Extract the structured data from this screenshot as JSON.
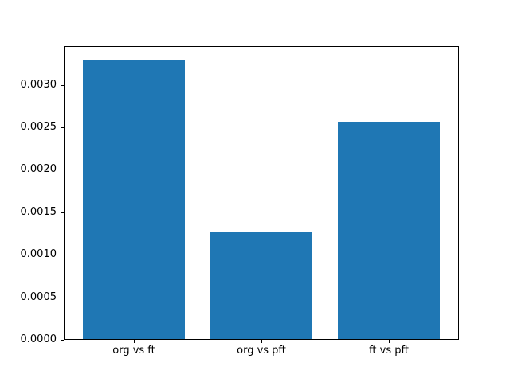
{
  "figure": {
    "background_color": "#ffffff",
    "frame_color": "#000000",
    "text_color": "#000000"
  },
  "chart_data": {
    "type": "bar",
    "title": "",
    "xlabel": "",
    "ylabel": "",
    "categories": [
      "org vs ft",
      "org vs pft",
      "ft vs pft"
    ],
    "values": [
      0.00329,
      0.00126,
      0.00257
    ],
    "bar_color": "#1f77b4",
    "bar_width_fraction": 0.8,
    "ylim": [
      0,
      0.003455
    ],
    "yticks": [
      0.0,
      0.0005,
      0.001,
      0.0015,
      0.002,
      0.0025,
      0.003
    ],
    "ytick_labels": [
      "0.0000",
      "0.0005",
      "0.0010",
      "0.0015",
      "0.0020",
      "0.0025",
      "0.0030"
    ],
    "grid": false,
    "legend_position": "none"
  }
}
